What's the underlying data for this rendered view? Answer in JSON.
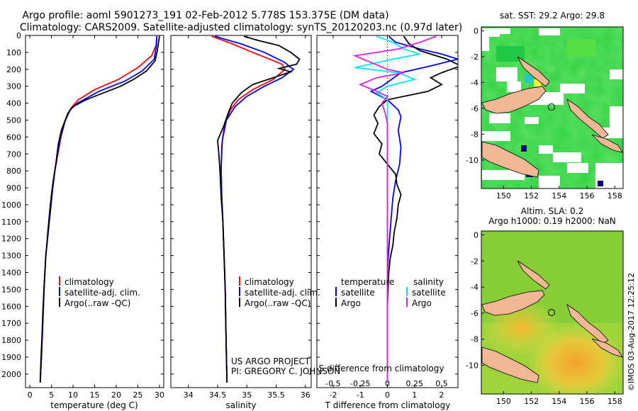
{
  "figure": {
    "title1": "Argo profile: aoml 5901273_191 02-Feb-2012 5.778S 153.375E (DM data)",
    "title2": "Climatology: CARS2009. Satellite-adjusted climatology: synTS_20120203.nc (0.97d later)",
    "project_line1": "US ARGO PROJECT",
    "project_line2": "PI: GREGORY C. JOHNSON",
    "imos_stamp": "©IMOS 03-Aug-2017 12:25:12"
  },
  "colors": {
    "climatology": "#ff0000",
    "satellite": "#0000ff",
    "argo": "#000000",
    "sal_satellite": "#00e5ff",
    "sal_argo": "#e020e0",
    "zero_line": "#000000"
  },
  "chart_data": [
    {
      "type": "line",
      "id": "temperature",
      "xlabel": "temperature (deg C)",
      "xlim": [
        -1,
        31
      ],
      "ylim": [
        2080,
        0
      ],
      "xticks": [
        0,
        5,
        10,
        15,
        20,
        25,
        30
      ],
      "yticks": [
        0,
        100,
        200,
        300,
        400,
        500,
        600,
        700,
        800,
        900,
        1000,
        1100,
        1200,
        1300,
        1400,
        1500,
        1600,
        1700,
        1800,
        1900,
        2000
      ],
      "legend": [
        "climatology",
        "satellite-adj. clim.",
        "Argo(..raw -QC)"
      ],
      "series": [
        {
          "name": "climatology",
          "color_key": "climatology",
          "points": [
            [
              29.4,
              5
            ],
            [
              29.2,
              60
            ],
            [
              28.2,
              120
            ],
            [
              25,
              190
            ],
            [
              20.5,
              260
            ],
            [
              15,
              320
            ],
            [
              11.2,
              380
            ],
            [
              9.5,
              430
            ],
            [
              8.2,
              500
            ],
            [
              7.2,
              600
            ],
            [
              6.5,
              700
            ],
            [
              5.8,
              800
            ],
            [
              5.3,
              900
            ],
            [
              4.9,
              1000
            ],
            [
              4.5,
              1100
            ],
            [
              4.1,
              1200
            ],
            [
              3.7,
              1300
            ],
            [
              3.3,
              1500
            ],
            [
              3.0,
              1700
            ],
            [
              2.7,
              1900
            ],
            [
              2.5,
              2000
            ],
            [
              2.4,
              2050
            ]
          ]
        },
        {
          "name": "satellite",
          "color_key": "satellite",
          "points": [
            [
              29.4,
              5
            ],
            [
              29.3,
              60
            ],
            [
              28.8,
              140
            ],
            [
              26,
              210
            ],
            [
              22,
              270
            ],
            [
              16,
              330
            ],
            [
              11,
              400
            ],
            [
              9.3,
              440
            ],
            [
              8.1,
              510
            ],
            [
              7.1,
              600
            ],
            [
              6.4,
              700
            ],
            [
              5.8,
              800
            ],
            [
              5.3,
              900
            ],
            [
              4.9,
              1000
            ],
            [
              4.5,
              1100
            ],
            [
              4.1,
              1200
            ],
            [
              3.7,
              1300
            ],
            [
              3.3,
              1500
            ],
            [
              3.0,
              1700
            ],
            [
              2.7,
              1900
            ],
            [
              2.5,
              2000
            ],
            [
              2.4,
              2050
            ]
          ]
        },
        {
          "name": "argo",
          "color_key": "argo",
          "points": [
            [
              30,
              5
            ],
            [
              29.8,
              40
            ],
            [
              29.5,
              90
            ],
            [
              29,
              150
            ],
            [
              27,
              210
            ],
            [
              24,
              260
            ],
            [
              21,
              300
            ],
            [
              17,
              340
            ],
            [
              13,
              380
            ],
            [
              10,
              420
            ],
            [
              8.8,
              460
            ],
            [
              7.9,
              520
            ],
            [
              7.3,
              560
            ],
            [
              6.6,
              640
            ],
            [
              6.0,
              760
            ],
            [
              5.4,
              860
            ],
            [
              5.0,
              940
            ],
            [
              4.6,
              1040
            ],
            [
              4.2,
              1150
            ],
            [
              3.9,
              1240
            ],
            [
              3.6,
              1340
            ],
            [
              3.3,
              1480
            ],
            [
              3.0,
              1640
            ],
            [
              2.8,
              1780
            ],
            [
              2.6,
              1900
            ],
            [
              2.45,
              2000
            ],
            [
              2.4,
              2050
            ]
          ]
        }
      ]
    },
    {
      "type": "line",
      "id": "salinity",
      "xlabel": "salinity",
      "xlim": [
        33.7,
        36.1
      ],
      "ylim": [
        2080,
        0
      ],
      "xticks": [
        34,
        34.5,
        35,
        35.5,
        36
      ],
      "xticklabels": [
        "34",
        "34.5",
        "35",
        "35.5",
        "36"
      ],
      "legend": [
        "climatology",
        "satellite-adj. clim.",
        "Argo(..raw -QC)"
      ],
      "series": [
        {
          "name": "climatology",
          "color_key": "climatology",
          "points": [
            [
              34.4,
              5
            ],
            [
              34.75,
              50
            ],
            [
              35.1,
              100
            ],
            [
              35.6,
              170
            ],
            [
              35.65,
              200
            ],
            [
              35.45,
              260
            ],
            [
              35.1,
              320
            ],
            [
              34.85,
              380
            ],
            [
              34.72,
              440
            ],
            [
              34.62,
              520
            ],
            [
              34.57,
              650
            ],
            [
              34.56,
              800
            ],
            [
              34.57,
              950
            ],
            [
              34.59,
              1100
            ],
            [
              34.61,
              1300
            ],
            [
              34.63,
              1500
            ],
            [
              34.64,
              1700
            ],
            [
              34.65,
              1900
            ],
            [
              34.66,
              2050
            ]
          ]
        },
        {
          "name": "satellite",
          "color_key": "satellite",
          "points": [
            [
              34.45,
              5
            ],
            [
              34.9,
              50
            ],
            [
              35.3,
              100
            ],
            [
              35.65,
              160
            ],
            [
              35.75,
              190
            ],
            [
              35.8,
              200
            ],
            [
              35.6,
              250
            ],
            [
              35.3,
              300
            ],
            [
              35.0,
              360
            ],
            [
              34.8,
              420
            ],
            [
              34.65,
              500
            ],
            [
              34.58,
              620
            ],
            [
              34.56,
              780
            ],
            [
              34.57,
              950
            ],
            [
              34.59,
              1100
            ],
            [
              34.61,
              1300
            ],
            [
              34.63,
              1500
            ],
            [
              34.64,
              1700
            ],
            [
              34.65,
              1900
            ],
            [
              34.66,
              2050
            ]
          ]
        },
        {
          "name": "argo",
          "color_key": "argo",
          "points": [
            [
              34.95,
              5
            ],
            [
              35.2,
              30
            ],
            [
              35.55,
              60
            ],
            [
              35.75,
              100
            ],
            [
              35.9,
              140
            ],
            [
              35.85,
              170
            ],
            [
              35.55,
              195
            ],
            [
              35.75,
              215
            ],
            [
              35.45,
              250
            ],
            [
              35.1,
              290
            ],
            [
              34.9,
              340
            ],
            [
              34.75,
              400
            ],
            [
              34.68,
              460
            ],
            [
              34.6,
              540
            ],
            [
              34.5,
              620
            ],
            [
              34.52,
              700
            ],
            [
              34.54,
              800
            ],
            [
              34.56,
              950
            ],
            [
              34.59,
              1100
            ],
            [
              34.61,
              1300
            ],
            [
              34.63,
              1500
            ],
            [
              34.64,
              1700
            ],
            [
              34.65,
              1900
            ],
            [
              34.66,
              2050
            ]
          ]
        }
      ]
    },
    {
      "type": "line",
      "id": "difference",
      "xlabel": "T difference from climatology",
      "xlabel2": "S difference from climatology",
      "xlim": [
        -2.6,
        2.6
      ],
      "ylim": [
        2080,
        0
      ],
      "xticks": [
        -2,
        -1,
        0,
        1,
        2
      ],
      "sticks": [
        -0.5,
        -0.25,
        0,
        0.25,
        0.5
      ],
      "sticklabels": [
        "-0.5",
        "-0.25",
        "0",
        "0.25",
        "0.5"
      ],
      "s_scale": 4,
      "legend_titles": [
        "temperature",
        "salinity"
      ],
      "legend_left": [
        "satellite",
        "Argo"
      ],
      "legend_right": [
        "satellite",
        "Argo"
      ],
      "series": [
        {
          "name": "T satellite",
          "color_key": "satellite",
          "units": "T",
          "points": [
            [
              0.05,
              5
            ],
            [
              0.3,
              40
            ],
            [
              1.2,
              80
            ],
            [
              2.0,
              110
            ],
            [
              2.6,
              140
            ],
            [
              1.6,
              180
            ],
            [
              0.5,
              220
            ],
            [
              0.15,
              260
            ],
            [
              -0.2,
              300
            ],
            [
              -0.6,
              330
            ],
            [
              0.0,
              380
            ],
            [
              0.4,
              440
            ],
            [
              0.5,
              480
            ],
            [
              0.4,
              560
            ],
            [
              0.5,
              660
            ],
            [
              0.45,
              760
            ],
            [
              0.3,
              860
            ],
            [
              0.2,
              960
            ],
            [
              0.15,
              1060
            ],
            [
              0.1,
              1160
            ],
            [
              0.05,
              1260
            ],
            [
              0.0,
              1400
            ],
            [
              0.0,
              1600
            ],
            [
              0.0,
              1800
            ],
            [
              0.0,
              2050
            ]
          ]
        },
        {
          "name": "T argo",
          "color_key": "argo",
          "units": "T",
          "points": [
            [
              0.6,
              5
            ],
            [
              0.8,
              50
            ],
            [
              1.2,
              90
            ],
            [
              2.2,
              140
            ],
            [
              2.7,
              180
            ],
            [
              2.0,
              220
            ],
            [
              1.6,
              250
            ],
            [
              2.0,
              290
            ],
            [
              1.5,
              330
            ],
            [
              0.0,
              380
            ],
            [
              -0.3,
              420
            ],
            [
              -0.5,
              470
            ],
            [
              -0.35,
              520
            ],
            [
              -0.5,
              580
            ],
            [
              -0.2,
              640
            ],
            [
              -0.3,
              700
            ],
            [
              0.0,
              760
            ],
            [
              0.3,
              820
            ],
            [
              0.35,
              880
            ],
            [
              0.5,
              940
            ],
            [
              0.4,
              1000
            ],
            [
              0.35,
              1080
            ],
            [
              0.25,
              1160
            ],
            [
              0.2,
              1240
            ],
            [
              0.1,
              1320
            ],
            [
              0.05,
              1400
            ],
            [
              0.0,
              1600
            ],
            [
              0.0,
              1800
            ],
            [
              0.0,
              2050
            ]
          ]
        },
        {
          "name": "S satellite",
          "color_key": "sal_satellite",
          "units": "S",
          "points": [
            [
              -0.1,
              5
            ],
            [
              0.05,
              40
            ],
            [
              0.15,
              80
            ],
            [
              0.3,
              110
            ],
            [
              0.05,
              140
            ],
            [
              -0.3,
              190
            ],
            [
              0.1,
              220
            ],
            [
              0.25,
              260
            ],
            [
              0.0,
              300
            ],
            [
              -0.1,
              340
            ],
            [
              0.0,
              380
            ],
            [
              0.0,
              500
            ],
            [
              0.0,
              2050
            ]
          ]
        },
        {
          "name": "S argo",
          "color_key": "sal_argo",
          "units": "S",
          "points": [
            [
              0.45,
              5
            ],
            [
              0.3,
              40
            ],
            [
              0.1,
              80
            ],
            [
              -0.3,
              120
            ],
            [
              -0.15,
              160
            ],
            [
              0.0,
              200
            ],
            [
              0.15,
              220
            ],
            [
              -0.1,
              250
            ],
            [
              -0.25,
              290
            ],
            [
              -0.1,
              330
            ],
            [
              0.0,
              360
            ],
            [
              -0.05,
              400
            ],
            [
              -0.02,
              460
            ],
            [
              0.0,
              520
            ],
            [
              0.0,
              2050
            ]
          ]
        }
      ]
    },
    {
      "type": "heatmap",
      "id": "sst_map",
      "title": "sat. SST: 29.2 Argo: 29.8",
      "xlim": [
        148.4,
        158.6
      ],
      "ylim": [
        -12.2,
        0.3
      ],
      "xticks": [
        150,
        152,
        154,
        156,
        158
      ],
      "yticks": [
        0,
        -2,
        -4,
        -6,
        -8,
        -10
      ],
      "float_marker": [
        153.375,
        -5.778
      ]
    },
    {
      "type": "heatmap",
      "id": "sla_map",
      "title1": "Altim. SLA: 0.2",
      "title2": "Argo h1000: 0.19 h2000: NaN",
      "xlim": [
        148.4,
        158.6
      ],
      "ylim": [
        -12.2,
        0.3
      ],
      "xticks": [
        150,
        152,
        154,
        156,
        158
      ],
      "yticks": [
        0,
        -2,
        -4,
        -6,
        -8,
        -10
      ],
      "float_marker": [
        153.375,
        -5.778
      ]
    }
  ]
}
